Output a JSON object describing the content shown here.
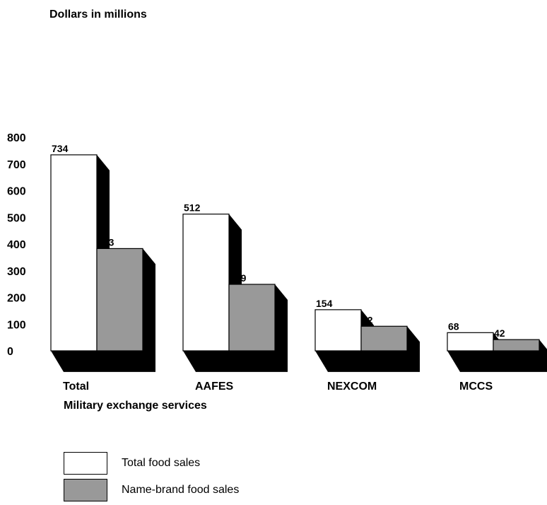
{
  "chart_data": {
    "type": "bar",
    "ylabel": "Dollars in millions",
    "xlabel": "Military exchange services",
    "categories": [
      "Total",
      "AAFES",
      "NEXCOM",
      "MCCS"
    ],
    "series": [
      {
        "name": "Total food sales",
        "values": [
          734,
          512,
          154,
          68
        ],
        "color": "#ffffff"
      },
      {
        "name": "Name-brand food sales",
        "values": [
          383,
          249,
          92,
          42
        ],
        "color": "#999999"
      }
    ],
    "ylim": [
      0,
      800
    ],
    "yticks": [
      "0",
      "100",
      "200",
      "300",
      "400",
      "500",
      "600",
      "700",
      "800"
    ],
    "grid": false,
    "legend_position": "bottom-left",
    "shadow_color": "#000000"
  }
}
